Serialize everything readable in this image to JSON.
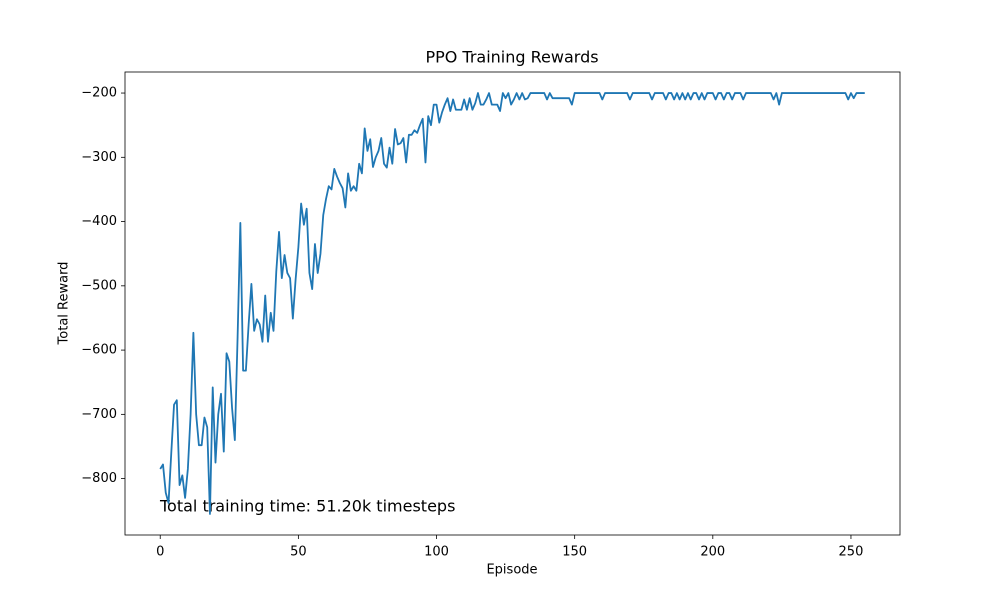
{
  "chart_data": {
    "type": "line",
    "title": "PPO Training Rewards",
    "xlabel": "Episode",
    "ylabel": "Total Reward",
    "annotation": "Total training time: 51.20k timesteps",
    "x": [
      0,
      1,
      2,
      3,
      4,
      5,
      6,
      7,
      8,
      9,
      10,
      11,
      12,
      13,
      14,
      15,
      16,
      17,
      18,
      19,
      20,
      21,
      22,
      23,
      24,
      25,
      26,
      27,
      28,
      29,
      30,
      31,
      32,
      33,
      34,
      35,
      36,
      37,
      38,
      39,
      40,
      41,
      42,
      43,
      44,
      45,
      46,
      47,
      48,
      49,
      50,
      51,
      52,
      53,
      54,
      55,
      56,
      57,
      58,
      59,
      60,
      61,
      62,
      63,
      64,
      65,
      66,
      67,
      68,
      69,
      70,
      71,
      72,
      73,
      74,
      75,
      76,
      77,
      78,
      79,
      80,
      81,
      82,
      83,
      84,
      85,
      86,
      87,
      88,
      89,
      90,
      91,
      92,
      93,
      94,
      95,
      96,
      97,
      98,
      99,
      100,
      101,
      102,
      103,
      104,
      105,
      106,
      107,
      108,
      109,
      110,
      111,
      112,
      113,
      114,
      115,
      116,
      117,
      118,
      119,
      120,
      121,
      122,
      123,
      124,
      125,
      126,
      127,
      128,
      129,
      130,
      131,
      132,
      133,
      134,
      135,
      136,
      137,
      138,
      139,
      140,
      141,
      142,
      143,
      144,
      145,
      146,
      147,
      148,
      149,
      150,
      151,
      152,
      153,
      154,
      155,
      156,
      157,
      158,
      159,
      160,
      161,
      162,
      163,
      164,
      165,
      166,
      167,
      168,
      169,
      170,
      171,
      172,
      173,
      174,
      175,
      176,
      177,
      178,
      179,
      180,
      181,
      182,
      183,
      184,
      185,
      186,
      187,
      188,
      189,
      190,
      191,
      192,
      193,
      194,
      195,
      196,
      197,
      198,
      199,
      200,
      201,
      202,
      203,
      204,
      205,
      206,
      207,
      208,
      209,
      210,
      211,
      212,
      213,
      214,
      215,
      216,
      217,
      218,
      219,
      220,
      221,
      222,
      223,
      224,
      225,
      226,
      227,
      228,
      229,
      230,
      231,
      232,
      233,
      234,
      235,
      236,
      237,
      238,
      239,
      240,
      241,
      242,
      243,
      244,
      245,
      246,
      247,
      248,
      249,
      250,
      251,
      252,
      253,
      254,
      255
    ],
    "series": [
      {
        "name": "Total Reward",
        "color": "#1f77b4",
        "values": [
          -785,
          -778,
          -822,
          -838,
          -760,
          -685,
          -678,
          -810,
          -795,
          -830,
          -785,
          -700,
          -573,
          -700,
          -748,
          -748,
          -705,
          -720,
          -855,
          -658,
          -775,
          -700,
          -668,
          -758,
          -605,
          -618,
          -690,
          -740,
          -580,
          -402,
          -632,
          -632,
          -560,
          -497,
          -570,
          -552,
          -560,
          -587,
          -515,
          -587,
          -542,
          -570,
          -478,
          -416,
          -488,
          -452,
          -480,
          -488,
          -551,
          -490,
          -440,
          -372,
          -405,
          -380,
          -480,
          -505,
          -435,
          -480,
          -450,
          -390,
          -365,
          -345,
          -350,
          -318,
          -330,
          -340,
          -348,
          -378,
          -325,
          -352,
          -345,
          -352,
          -310,
          -325,
          -255,
          -290,
          -272,
          -315,
          -300,
          -290,
          -270,
          -310,
          -316,
          -285,
          -310,
          -256,
          -280,
          -278,
          -270,
          -308,
          -265,
          -265,
          -258,
          -262,
          -250,
          -240,
          -308,
          -236,
          -250,
          -218,
          -218,
          -246,
          -230,
          -218,
          -208,
          -228,
          -210,
          -226,
          -226,
          -226,
          -210,
          -226,
          -208,
          -226,
          -216,
          -200,
          -218,
          -218,
          -210,
          -200,
          -218,
          -218,
          -218,
          -228,
          -200,
          -208,
          -200,
          -218,
          -210,
          -200,
          -210,
          -200,
          -210,
          -208,
          -200,
          -200,
          -200,
          -200,
          -200,
          -200,
          -210,
          -200,
          -208,
          -208,
          -208,
          -208,
          -208,
          -208,
          -208,
          -218,
          -200,
          -200,
          -200,
          -200,
          -200,
          -200,
          -200,
          -200,
          -200,
          -200,
          -210,
          -200,
          -200,
          -200,
          -200,
          -200,
          -200,
          -200,
          -200,
          -200,
          -210,
          -200,
          -200,
          -200,
          -200,
          -200,
          -200,
          -200,
          -210,
          -200,
          -200,
          -200,
          -200,
          -210,
          -200,
          -200,
          -210,
          -200,
          -210,
          -200,
          -210,
          -200,
          -210,
          -200,
          -200,
          -210,
          -200,
          -210,
          -200,
          -200,
          -200,
          -210,
          -200,
          -200,
          -210,
          -200,
          -200,
          -210,
          -200,
          -200,
          -200,
          -210,
          -200,
          -200,
          -200,
          -200,
          -200,
          -200,
          -200,
          -200,
          -200,
          -200,
          -210,
          -200,
          -218,
          -200,
          -200,
          -200,
          -200,
          -200,
          -200,
          -200,
          -200,
          -200,
          -200,
          -200,
          -200,
          -200,
          -200,
          -200,
          -200,
          -200,
          -200,
          -200,
          -200,
          -200,
          -200,
          -200,
          -200,
          -210,
          -200,
          -208,
          -200,
          -200,
          -200,
          -200
        ]
      }
    ],
    "xlim": [
      -12.75,
      267.75
    ],
    "xticks": [
      0,
      50,
      100,
      150,
      200,
      250
    ],
    "ylim": [
      -887.75,
      -167.25
    ],
    "yticks": [
      {
        "value": -800,
        "label": "−800"
      },
      {
        "value": -700,
        "label": "−700"
      },
      {
        "value": -600,
        "label": "−600"
      },
      {
        "value": -500,
        "label": "−500"
      },
      {
        "value": -400,
        "label": "−400"
      },
      {
        "value": -300,
        "label": "−300"
      },
      {
        "value": -200,
        "label": "−200"
      }
    ],
    "grid": false
  }
}
